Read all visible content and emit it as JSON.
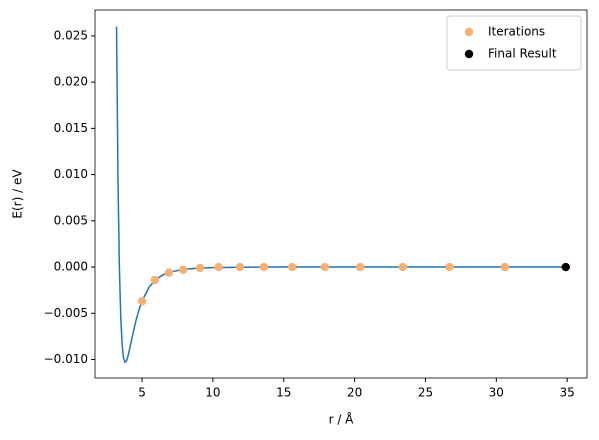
{
  "chart_data": {
    "type": "line",
    "xlabel": "r / Å",
    "ylabel": "E(r) / eV",
    "xlim": [
      1.68,
      36.4
    ],
    "ylim": [
      -0.012,
      0.0278
    ],
    "xticks": [
      5,
      10,
      15,
      20,
      25,
      30,
      35
    ],
    "yticks": [
      {
        "value": -0.01,
        "label": "−0.010"
      },
      {
        "value": -0.005,
        "label": "−0.005"
      },
      {
        "value": 0,
        "label": "0.000"
      },
      {
        "value": 0.005,
        "label": "0.005"
      },
      {
        "value": 0.01,
        "label": "0.010"
      },
      {
        "value": 0.015,
        "label": "0.015"
      },
      {
        "value": 0.02,
        "label": "0.020"
      },
      {
        "value": 0.025,
        "label": "0.025"
      }
    ],
    "grid": false,
    "legend": "upper right",
    "series": [
      {
        "type": "line",
        "color": "#1f77b4",
        "x": [
          3.2,
          3.3,
          3.4,
          3.5,
          3.6,
          3.7,
          3.8,
          3.9,
          4.0,
          4.2,
          4.4,
          4.6,
          4.8,
          5.0,
          5.5,
          6,
          6.5,
          7,
          8,
          9,
          10,
          12,
          15,
          20,
          25,
          30,
          34.9
        ],
        "values": [
          0.026,
          0.00967,
          0,
          -0.00553,
          -0.00849,
          -0.00987,
          -0.0103,
          -0.01015,
          -0.00968,
          -0.00833,
          -0.0069,
          -0.00562,
          -0.00454,
          -0.00367,
          -0.00217,
          -0.00132,
          -0.00083,
          -0.00053,
          -0.00024,
          -0.00012,
          -6e-05,
          -2e-05,
          0,
          0,
          0,
          0,
          0
        ]
      },
      {
        "type": "scatter",
        "name": "Iterations",
        "color": "#f8b072",
        "x": [
          5.0,
          5.9,
          6.9,
          7.9,
          9.1,
          10.4,
          11.9,
          13.6,
          15.6,
          17.9,
          20.4,
          23.4,
          26.7,
          30.6
        ],
        "values": [
          -0.0037,
          -0.0014,
          -0.0006,
          -0.0003,
          -0.0001,
          0,
          0,
          0,
          0,
          0,
          0,
          0,
          0,
          0
        ]
      },
      {
        "type": "scatter",
        "name": "Final Result",
        "color": "#000000",
        "x": [
          34.9
        ],
        "values": [
          0
        ]
      }
    ]
  }
}
